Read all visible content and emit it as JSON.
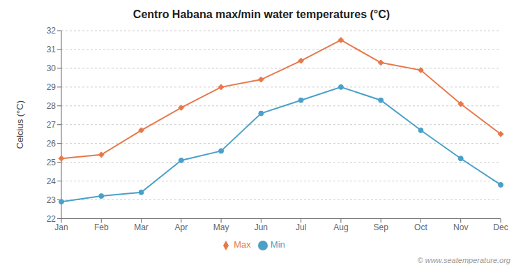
{
  "chart_data": {
    "type": "line",
    "title": "Centro Habana max/min water temperatures (°C)",
    "ylabel": "Celcius (°C)",
    "categories": [
      "Jan",
      "Feb",
      "Mar",
      "Apr",
      "May",
      "Jun",
      "Jul",
      "Aug",
      "Sep",
      "Oct",
      "Nov",
      "Dec"
    ],
    "series": [
      {
        "name": "Max",
        "color": "#e8784a",
        "marker": "diamond",
        "values": [
          25.2,
          25.4,
          26.7,
          27.9,
          29.0,
          29.4,
          30.4,
          31.5,
          30.3,
          29.9,
          28.1,
          26.5
        ]
      },
      {
        "name": "Min",
        "color": "#4aa0c8",
        "marker": "circle",
        "values": [
          22.9,
          23.2,
          23.4,
          25.1,
          25.6,
          27.6,
          28.3,
          29.0,
          28.3,
          26.7,
          25.2,
          23.8
        ]
      }
    ],
    "ylim": [
      22,
      32
    ],
    "yticks": [
      22,
      23,
      24,
      25,
      26,
      27,
      28,
      29,
      30,
      31,
      32
    ],
    "grid": true,
    "legend": "bottom",
    "annotations": [
      "© www.seatemperature.org"
    ]
  }
}
